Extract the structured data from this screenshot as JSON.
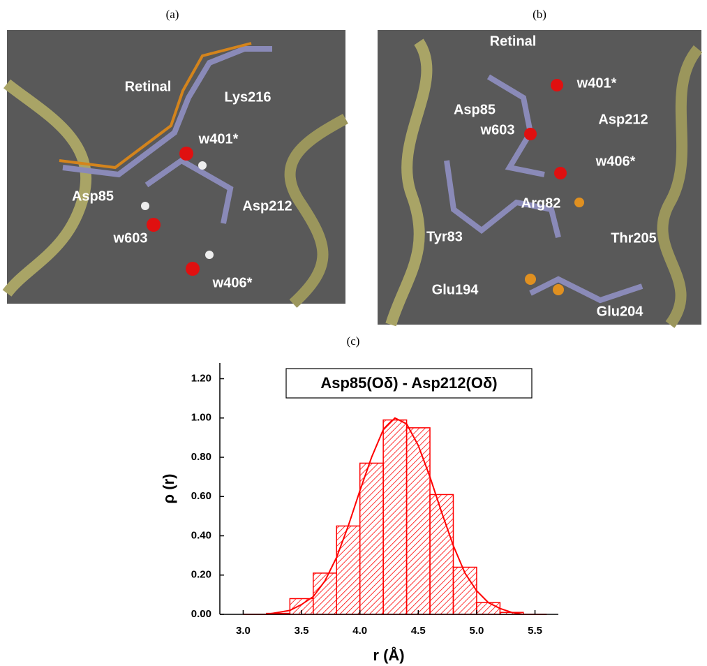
{
  "panels": {
    "a": {
      "tag": "(a)",
      "labels": [
        "Retinal",
        "Lys216",
        "w401*",
        "Asp85",
        "Asp212",
        "w603",
        "w406*"
      ]
    },
    "b": {
      "tag": "(b)",
      "labels": [
        "Retinal",
        "w401*",
        "Asp85",
        "Asp212",
        "w603",
        "w406*",
        "Arg82",
        "Thr205",
        "Tyr83",
        "Glu194",
        "Glu204"
      ]
    },
    "c": {
      "tag": "(c)"
    }
  },
  "chart_data": {
    "type": "histogram",
    "title": "Asp85(Oδ) - Asp212(Oδ)",
    "x_label": "r (Å)",
    "y_label": "ρ (r)",
    "color": "#ff0000",
    "bins": [
      3.2,
      3.4,
      3.6,
      3.8,
      4.0,
      4.2,
      4.4,
      4.6,
      4.8,
      5.0,
      5.2,
      5.4
    ],
    "counts": [
      0.005,
      0.08,
      0.21,
      0.45,
      0.77,
      0.99,
      0.95,
      0.61,
      0.24,
      0.06,
      0.01
    ],
    "fit": {
      "color": "#ff0000",
      "x": [
        3.0,
        3.1,
        3.2,
        3.3,
        3.4,
        3.5,
        3.6,
        3.7,
        3.8,
        3.9,
        4.0,
        4.1,
        4.2,
        4.3,
        4.4,
        4.5,
        4.6,
        4.7,
        4.8,
        4.9,
        5.0,
        5.1,
        5.2,
        5.3,
        5.4,
        5.5,
        5.6
      ],
      "values": [
        0.0,
        0.0,
        0.0,
        0.01,
        0.02,
        0.05,
        0.09,
        0.17,
        0.29,
        0.45,
        0.63,
        0.8,
        0.94,
        1.0,
        0.97,
        0.86,
        0.7,
        0.52,
        0.35,
        0.21,
        0.12,
        0.06,
        0.03,
        0.01,
        0.0,
        0.0,
        0.0
      ]
    },
    "xlim": [
      2.8,
      5.7
    ],
    "ylim": [
      0,
      1.28
    ],
    "xticks": [
      {
        "value": 3,
        "label": "3.0"
      },
      3.5,
      {
        "value": 4,
        "label": "4.0"
      },
      4.5,
      {
        "value": 5,
        "label": "5.0"
      },
      5.5
    ],
    "yticks": [
      {
        "value": 0,
        "label": "0.00"
      },
      {
        "value": 0.2,
        "label": "0.20"
      },
      {
        "value": 0.4,
        "label": "0.40"
      },
      {
        "value": 0.6,
        "label": "0.60"
      },
      {
        "value": 0.8,
        "label": "0.80"
      },
      {
        "value": 1,
        "label": "1.00"
      },
      {
        "value": 1.2,
        "label": "1.20"
      }
    ]
  }
}
